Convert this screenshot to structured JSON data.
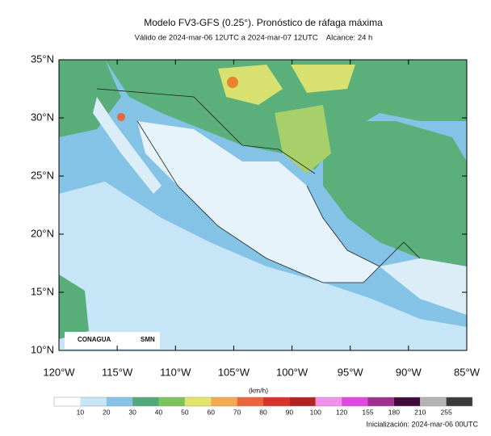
{
  "title": "Modelo FV3-GFS (0.25°). Pronóstico de ráfaga máxima",
  "subtitle": "Válido de 2024-mar-06 12UTC a 2024-mar-07 12UTC    Alcance: 24 h",
  "map": {
    "lat_labels": [
      "35°N",
      "30°N",
      "25°N",
      "20°N",
      "15°N",
      "10°N"
    ],
    "lon_labels": [
      "120°W",
      "115°W",
      "110°W",
      "105°W",
      "100°W",
      "95°W",
      "90°W",
      "85°W"
    ]
  },
  "logos": {
    "left": "CONAGUA",
    "right": "SMN"
  },
  "colorbar": {
    "unit": "(km/h)",
    "ticks": [
      10,
      20,
      30,
      40,
      50,
      60,
      70,
      80,
      90,
      100,
      120,
      155,
      180,
      210,
      255
    ],
    "colors": [
      "#ffffff",
      "#c6e5f6",
      "#86c3e6",
      "#4fa97c",
      "#7cc35a",
      "#e2e36a",
      "#f2a950",
      "#e8663a",
      "#d8352c",
      "#b02424",
      "#f290ea",
      "#e046e0",
      "#a0308e",
      "#3e0c3a",
      "#b3b3b3",
      "#3a3a3a"
    ]
  },
  "footer": "Inicialización: 2024-mar-06 00UTC"
}
